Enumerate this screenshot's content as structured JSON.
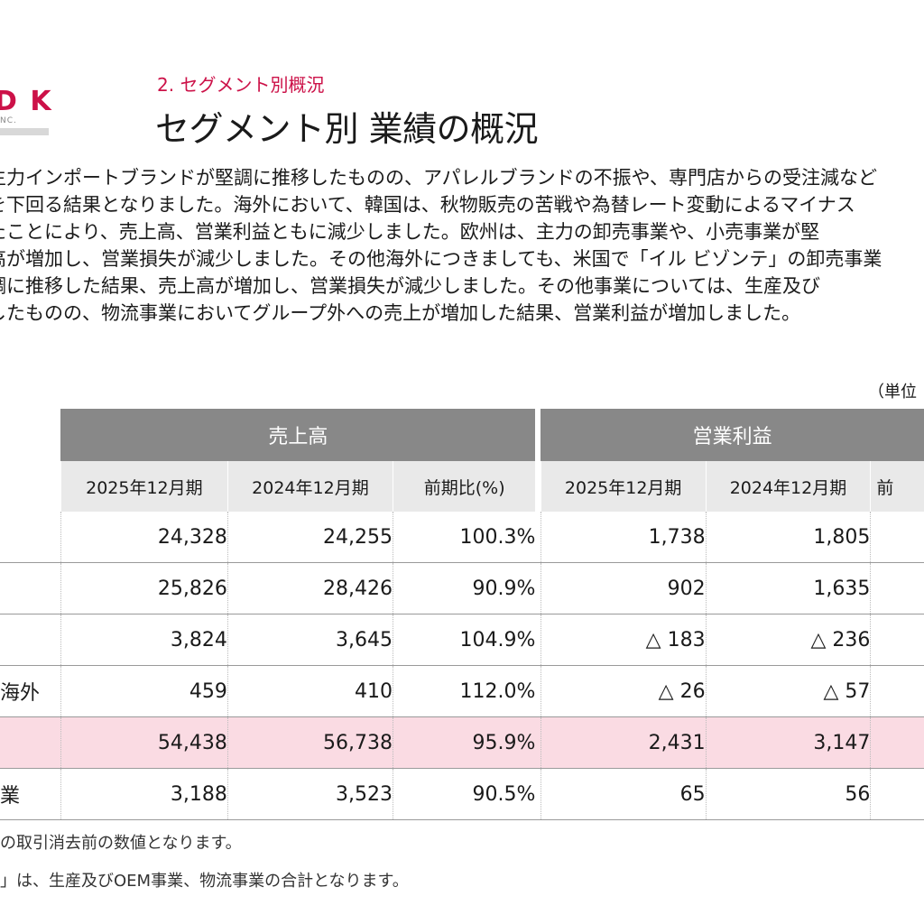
{
  "logo": {
    "letters": "D K",
    "sub": "NC."
  },
  "header": {
    "section": "2. セグメント別概況",
    "title": "セグメント別 業績の概況"
  },
  "body_lines": [
    "主力インポートブランドが堅調に推移したものの、アパレルブランドの不振や、専門店からの受注減など",
    "を下回る結果となりました。海外において、韓国は、秋物販売の苦戦や為替レート変動によるマイナス",
    "たことにより、売上高、営業利益ともに減少しました。欧州は、主力の卸売事業や、小売事業が堅",
    "高が増加し、営業損失が減少しました。その他海外につきましても、米国で「イル ビゾンテ」の卸売事業",
    "調に推移した結果、売上高が増加し、営業損失が減少しました。その他事業については、生産及び",
    "したものの、物流事業においてグループ外への売上が増加した結果、営業利益が増加しました。"
  ],
  "unit_note": "（単位",
  "table": {
    "groups": [
      "売上高",
      "営業利益"
    ],
    "columns": [
      "2025年12月期",
      "2024年12月期",
      "前期比(%)",
      "2025年12月期",
      "2024年12月期",
      "前"
    ],
    "rows": [
      {
        "label": "",
        "values": [
          "24,328",
          "24,255",
          "100.3%",
          "1,738",
          "1,805"
        ],
        "highlight": false
      },
      {
        "label": "",
        "values": [
          "25,826",
          "28,426",
          "90.9%",
          "902",
          "1,635"
        ],
        "highlight": false
      },
      {
        "label": "",
        "values": [
          "3,824",
          "3,645",
          "104.9%",
          "△ 183",
          "△ 236"
        ],
        "highlight": false
      },
      {
        "label": "海外",
        "values": [
          "459",
          "410",
          "112.0%",
          "△ 26",
          "△ 57"
        ],
        "highlight": false
      },
      {
        "label": "",
        "values": [
          "54,438",
          "56,738",
          "95.9%",
          "2,431",
          "3,147"
        ],
        "highlight": true
      },
      {
        "label": "業",
        "values": [
          "3,188",
          "3,523",
          "90.5%",
          "65",
          "56"
        ],
        "highlight": false
      }
    ]
  },
  "footnotes": [
    "の取引消去前の数値となります。",
    "」は、生産及びOEM事業、物流事業の合計となります。"
  ],
  "colors": {
    "accent": "#cc1148",
    "header_group_bg": "#888888",
    "header_sub_bg": "#e9e9e9",
    "highlight_row_bg": "#fadbe3"
  }
}
